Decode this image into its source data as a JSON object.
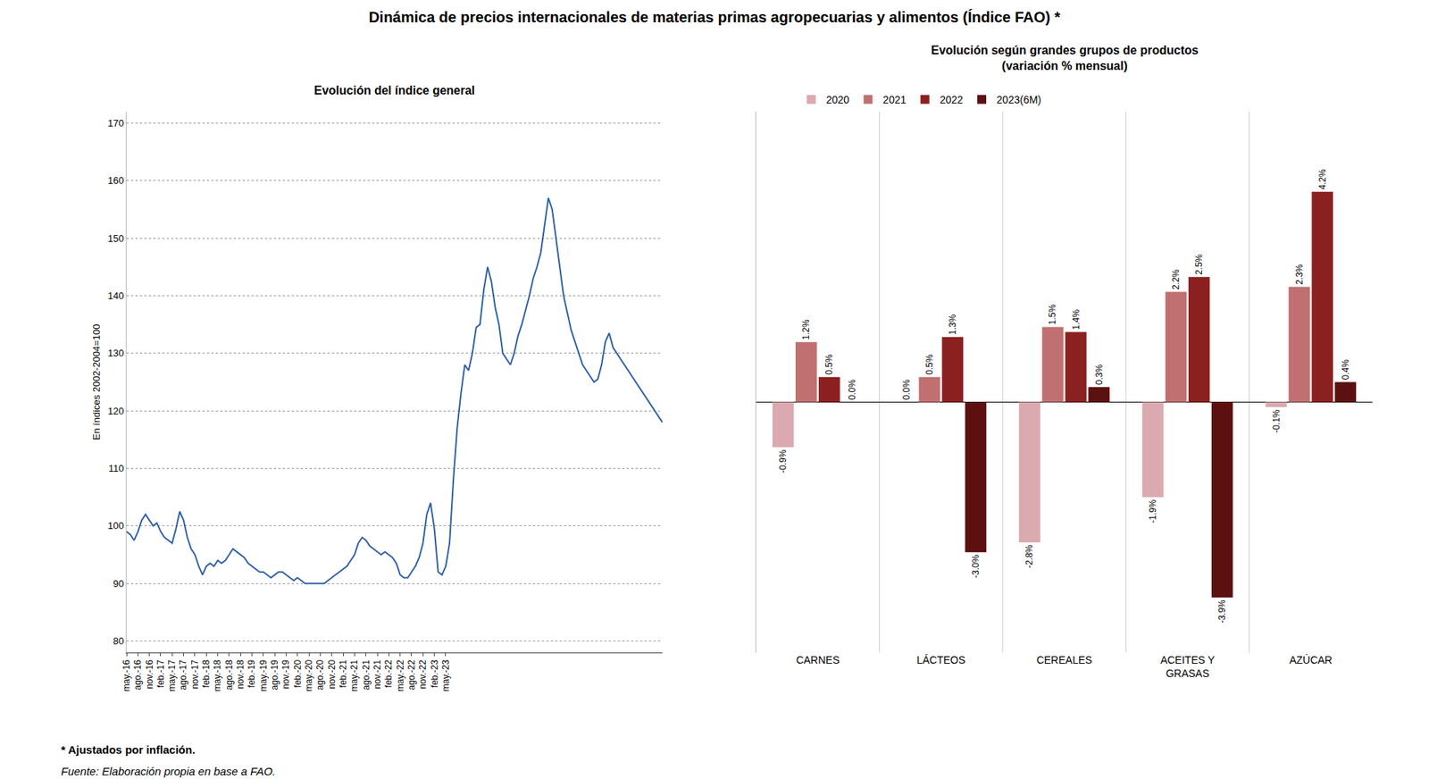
{
  "chart_data": [
    {
      "type": "line",
      "title": "Dinámica de precios internacionales de materias primas agropecuarias y alimentos (Índice FAO) *",
      "subtitle": "Evolución del índice general",
      "annotations": [
        "* Ajustados por inflación.",
        "Fuente: Elaboración propia en base a FAO."
      ],
      "ylabel": "En índices 2002-2004=100",
      "color": "#2E5FA3",
      "categories": [
        "may.-16",
        null,
        null,
        "ago.-16",
        null,
        null,
        "nov.-16",
        null,
        null,
        "feb.-17",
        null,
        null,
        "may.-17",
        null,
        null,
        "ago.-17",
        null,
        null,
        "nov.-17",
        null,
        null,
        "feb.-18",
        null,
        null,
        "may.-18",
        null,
        null,
        "ago.-18",
        null,
        null,
        "nov.-18",
        null,
        null,
        "feb.-19",
        null,
        null,
        "may.-19",
        null,
        null,
        "ago.-19",
        null,
        null,
        "nov.-19",
        null,
        null,
        "feb.-20",
        null,
        null,
        "may.-20",
        null,
        null,
        "ago.-20",
        null,
        null,
        "nov.-20",
        null,
        null,
        "feb.-21",
        null,
        null,
        "may.-21",
        null,
        null,
        "ago.-21",
        null,
        null,
        "nov.-21",
        null,
        null,
        "feb.-22",
        null,
        null,
        "may.-22",
        null,
        null,
        "ago.-22",
        null,
        null,
        "nov.-22",
        null,
        null,
        "feb.-23",
        null,
        null,
        "may.-23",
        null,
        null,
        null,
        null,
        null,
        null,
        null,
        null,
        null,
        null,
        null,
        null,
        null,
        null,
        null,
        null,
        null,
        null,
        null,
        null,
        null,
        null,
        null,
        null,
        null,
        null,
        null,
        null,
        null,
        null,
        null,
        null,
        null,
        null,
        null,
        null,
        null,
        null,
        null,
        null,
        null,
        null,
        null,
        null,
        null,
        null,
        null,
        null,
        null,
        null,
        null,
        null,
        null,
        null,
        null,
        null,
        null
      ],
      "values": [
        99,
        98.5,
        97.5,
        99,
        101,
        102,
        101,
        100,
        100.5,
        99,
        98,
        97.5,
        97,
        99.5,
        102.5,
        101,
        98,
        96,
        95,
        93,
        91.5,
        93,
        93.5,
        93,
        94,
        93.5,
        94,
        95,
        96,
        95.5,
        95,
        94.5,
        93.5,
        93,
        92.5,
        92,
        92,
        91.5,
        91,
        91.5,
        92,
        92,
        91.5,
        91,
        90.5,
        91,
        90.5,
        90,
        90,
        90,
        90,
        90,
        90,
        90.5,
        91,
        91.5,
        92,
        92.5,
        93,
        94,
        95,
        97,
        98,
        97.5,
        96.5,
        96,
        95.5,
        95,
        95.5,
        95,
        94.5,
        93.5,
        91.5,
        91,
        91,
        92,
        93,
        94.5,
        97,
        102,
        104,
        99.5,
        92,
        91.5,
        93,
        97,
        108,
        117,
        123,
        128,
        127,
        130,
        134.5,
        135,
        141,
        145,
        142.5,
        138,
        135,
        130,
        129,
        128,
        130,
        133,
        135,
        137.5,
        140,
        143,
        145,
        147.5,
        152,
        157,
        155,
        150,
        145,
        140,
        137,
        134,
        132,
        130,
        128,
        127,
        126,
        125,
        125.5,
        128,
        132,
        133.5,
        131,
        130,
        129,
        128,
        127,
        126,
        125,
        124,
        123,
        122,
        121,
        120,
        119,
        118
      ],
      "ylim": [
        78,
        172
      ],
      "yticks": [
        80,
        90,
        100,
        110,
        120,
        130,
        140,
        150,
        160,
        170
      ],
      "grid": true
    },
    {
      "type": "bar",
      "subtitle": "Evolución según grandes grupos de productos\n(variación % mensual)",
      "categories": [
        "CARNES",
        "LÁCTEOS",
        "CEREALES",
        "ACEITES Y\nGRASAS",
        "AZÚCAR"
      ],
      "series": [
        {
          "name": "2020",
          "color": "#DAAAB0",
          "values": [
            -0.9,
            0.0,
            -2.8,
            -1.9,
            -0.1
          ],
          "value_labels": [
            "-0.9%",
            "0.0%",
            "-2.8%",
            "-1.9%",
            "-0.1%"
          ]
        },
        {
          "name": "2021",
          "color": "#C07070",
          "values": [
            1.2,
            0.5,
            1.5,
            2.2,
            2.3
          ],
          "value_labels": [
            "1.2%",
            "0.5%",
            "1.5%",
            "2.2%",
            "2.3%"
          ]
        },
        {
          "name": "2022",
          "color": "#8B2020",
          "values": [
            0.5,
            1.3,
            1.4,
            2.5,
            4.2
          ],
          "value_labels": [
            "0.5%",
            "1.3%",
            "1.4%",
            "2.5%",
            "4.2%"
          ]
        },
        {
          "name": "2023(6M)",
          "color": "#5C1010",
          "values": [
            0.0,
            -3.0,
            0.3,
            -3.9,
            0.4
          ],
          "value_labels": [
            "0.0%",
            "-3.0%",
            "0.3%",
            "-3.9%",
            "0.4%"
          ]
        }
      ],
      "ylim": [
        -5.0,
        5.8
      ],
      "tick_labels": "x",
      "data_labels": true,
      "legend": "upper left",
      "grid": false
    }
  ]
}
